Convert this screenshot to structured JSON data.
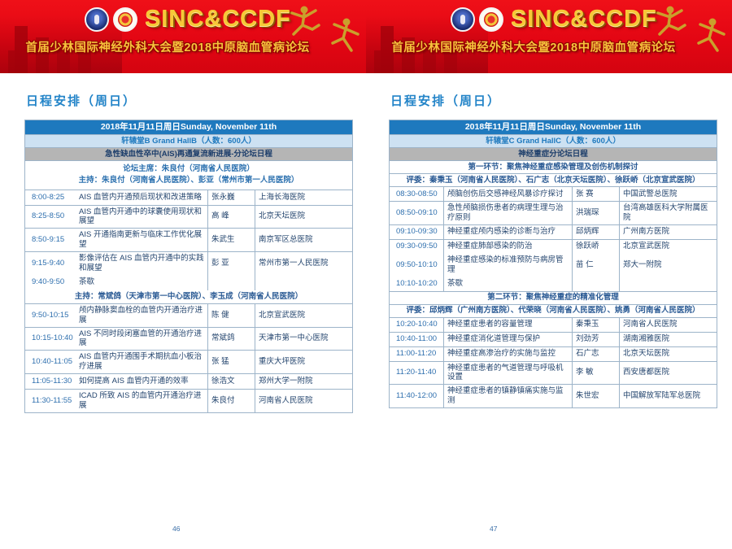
{
  "banner": {
    "title": "SINC&CCDF",
    "subtitle": "首届少林国际神经外科大会暨2018中原脑血管病论坛"
  },
  "colors": {
    "banner_red": "#e30613",
    "banner_gold": "#f7c838",
    "header_blue": "#1e79be",
    "hall_row_blue": "#cde1f2",
    "session_row_gray": "#b5b5b5",
    "table_border": "#9db4c9",
    "text_navy": "#24456e",
    "title_blue": "#2384c8"
  },
  "pages": [
    {
      "page_title": "日程安排（周日）",
      "page_number": "46",
      "table": {
        "blocks": [
          {
            "type": "date",
            "text": "2018年11月11日周日Sunday, November 11th"
          },
          {
            "type": "hall",
            "text": "轩辕堂B Grand HallB（人数：600人）"
          },
          {
            "type": "session",
            "text": "急性缺血性卒中(AIS)再通复流新进展-分论坛日程"
          },
          {
            "type": "info",
            "lines": [
              "论坛主席：朱良付（河南省人民医院）",
              "主持：朱良付（河南省人民医院）、彭亚（常州市第一人民医院）"
            ]
          },
          {
            "type": "row",
            "time": "8:00-8:25",
            "topic": "AIS 血管内开通预后现状和改进策略",
            "speaker": "张永巍",
            "hospital": "上海长海医院"
          },
          {
            "type": "row",
            "time": "8:25-8:50",
            "topic": "AIS 血管内开通中的球囊使用现状和展望",
            "speaker": "高  峰",
            "hospital": "北京天坛医院"
          },
          {
            "type": "row",
            "time": "8:50-9:15",
            "topic": "AIS 开通指南更新与临床工作优化展望",
            "speaker": "朱武生",
            "hospital": "南京军区总医院"
          },
          {
            "type": "row",
            "time": "9:15-9:40",
            "topic": "影像评估在 AIS 血管内开通中的实践和展望",
            "speaker": "彭  亚",
            "hospital": "常州市第一人民医院"
          },
          {
            "type": "row",
            "time": "9:40-9:50",
            "topic": "茶歇",
            "speaker": "",
            "hospital": "",
            "sep": false
          },
          {
            "type": "line",
            "name": "chair-line",
            "text": "主持：常斌鸽（天津市第一中心医院）、李玉成（河南省人民医院）",
            "sep": false
          },
          {
            "type": "row",
            "time": "9:50-10:15",
            "topic": "颅内静脉窦血栓的血管内开通治疗进展",
            "speaker": "陈  健",
            "hospital": "北京宣武医院"
          },
          {
            "type": "row",
            "time": "10:15-10:40",
            "topic": "AIS 不同时段闭塞血管的开通治疗进展",
            "speaker": "常斌鸽",
            "hospital": "天津市第一中心医院"
          },
          {
            "type": "row",
            "time": "10:40-11:05",
            "topic": "AIS 血管内开通围手术期抗血小板治疗进展",
            "speaker": "张  猛",
            "hospital": "重庆大坪医院"
          },
          {
            "type": "row",
            "time": "11:05-11:30",
            "topic": "如何提高 AIS 血管内开通的效率",
            "speaker": "徐浩文",
            "hospital": "郑州大学一附院"
          },
          {
            "type": "row",
            "time": "11:30-11:55",
            "topic": "ICAD 所致 AIS 的血管内开通治疗进展",
            "speaker": "朱良付",
            "hospital": "河南省人民医院"
          }
        ]
      }
    },
    {
      "page_title": "日程安排（周日）",
      "page_number": "47",
      "table": {
        "blocks": [
          {
            "type": "date",
            "text": "2018年11月11日周日Sunday, November 11th"
          },
          {
            "type": "hall",
            "text": "轩辕堂C Grand HallC（人数：600人）"
          },
          {
            "type": "session",
            "text": "神经重症分论坛日程"
          },
          {
            "type": "line",
            "name": "section-title-line",
            "text": "第一环节：聚焦神经重症感染管理及创伤机制探讨"
          },
          {
            "type": "line",
            "name": "judges-line",
            "text": "评委：秦秉玉（河南省人民医院）、石广志（北京天坛医院）、徐跃峤（北京宣武医院）"
          },
          {
            "type": "row",
            "time": "08:30-08:50",
            "topic": "颅脑创伤后交感神经风暴诊疗探讨",
            "speaker": "张  赛",
            "hospital": "中国武警总医院"
          },
          {
            "type": "row",
            "time": "08:50-09:10",
            "topic": "急性颅脑损伤患者的病理生理与治疗原则",
            "speaker": "洪瑞琛",
            "hospital": "台湾高雄医科大学附属医院"
          },
          {
            "type": "row",
            "time": "09:10-09:30",
            "topic": "神经重症颅内感染的诊断与治疗",
            "speaker": "邱炳辉",
            "hospital": "广州南方医院"
          },
          {
            "type": "row",
            "time": "09:30-09:50",
            "topic": "神经重症肺部感染的防治",
            "speaker": "徐跃峤",
            "hospital": "北京宣武医院"
          },
          {
            "type": "row",
            "time": "09:50-10:10",
            "topic": "神经重症感染的标准预防与病房管理",
            "speaker": "苗  仁",
            "hospital": "郑大一附院",
            "sep": false
          },
          {
            "type": "row",
            "time": "10:10-10:20",
            "topic": "茶歇",
            "speaker": "",
            "hospital": "",
            "sep": false
          },
          {
            "type": "line",
            "name": "section-title-line",
            "text": "第二环节：聚焦神经重症的精准化管理"
          },
          {
            "type": "line",
            "name": "judges-line",
            "text": "评委：邱炳辉（广州南方医院）、代荣晓（河南省人民医院）、姚勇（河南省人民医院）"
          },
          {
            "type": "row",
            "time": "10:20-10:40",
            "topic": "神经重症患者的容量管理",
            "speaker": "秦秉玉",
            "hospital": "河南省人民医院"
          },
          {
            "type": "row",
            "time": "10:40-11:00",
            "topic": "神经重症消化道管理与保护",
            "speaker": "刘劲芳",
            "hospital": "湖南湘雅医院"
          },
          {
            "type": "row",
            "time": "11:00-11:20",
            "topic": "神经重症高渗治疗的实施与监控",
            "speaker": "石广志",
            "hospital": "北京天坛医院"
          },
          {
            "type": "row",
            "time": "11:20-11:40",
            "topic": "神经重症患者的气道管理与呼吸机设置",
            "speaker": "李  敏",
            "hospital": "西安唐都医院"
          },
          {
            "type": "row",
            "time": "11:40-12:00",
            "topic": "神经重症患者的镇静镇痛实施与监测",
            "speaker": "朱世宏",
            "hospital": "中国解放军陆军总医院"
          }
        ]
      }
    }
  ]
}
